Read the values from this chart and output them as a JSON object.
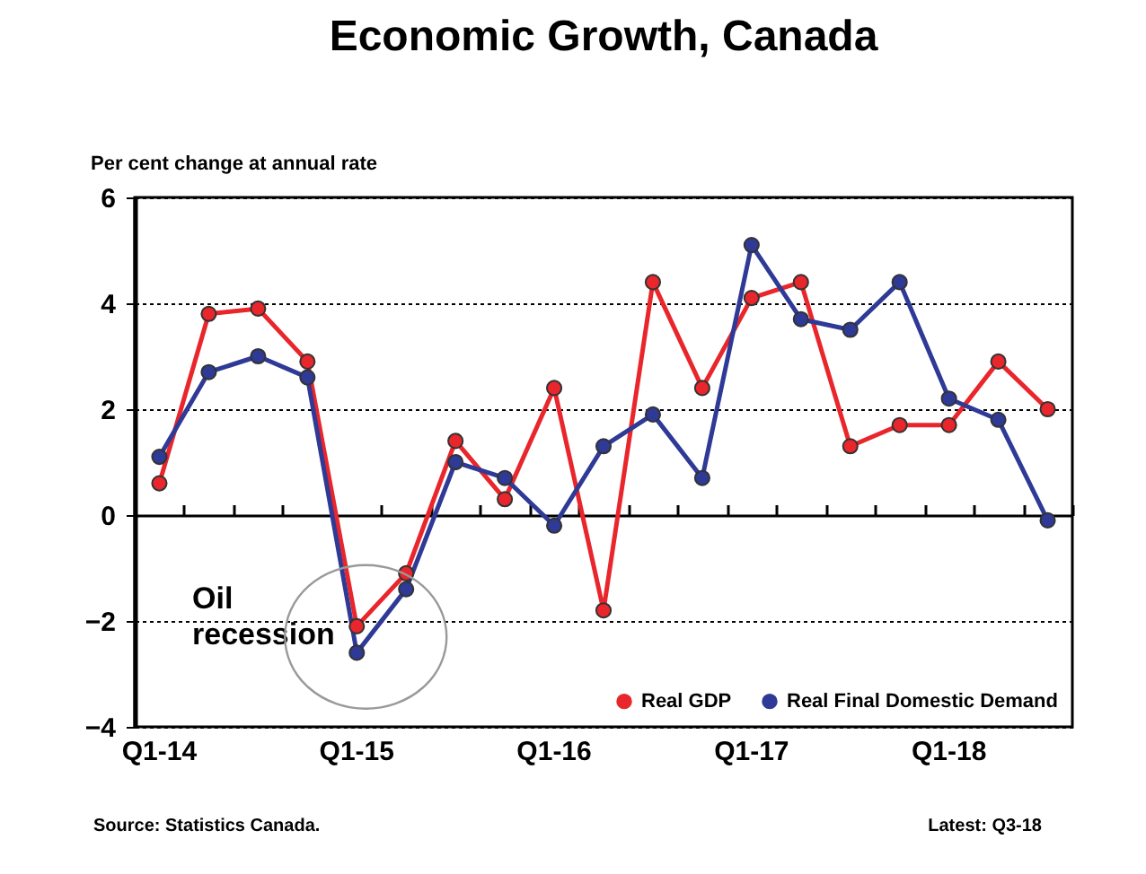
{
  "chart_data": {
    "type": "line",
    "title": "Economic Growth, Canada",
    "ylabel": "Per cent change at annual rate",
    "categories": [
      "Q1-14",
      null,
      null,
      null,
      "Q1-15",
      null,
      null,
      null,
      "Q1-16",
      null,
      null,
      null,
      "Q1-17",
      null,
      null,
      null,
      "Q1-18",
      null,
      null
    ],
    "series": [
      {
        "name": "Real GDP",
        "color": "#e8262b",
        "values": [
          0.6,
          3.8,
          3.9,
          2.9,
          -2.1,
          -1.1,
          1.4,
          0.3,
          2.4,
          -1.8,
          4.4,
          2.4,
          4.1,
          4.4,
          1.3,
          1.7,
          1.7,
          2.9,
          2.0
        ]
      },
      {
        "name": "Real Final Domestic Demand",
        "color": "#2e3a96",
        "values": [
          1.1,
          2.7,
          3.0,
          2.6,
          -2.6,
          -1.4,
          1.0,
          0.7,
          -0.2,
          1.3,
          1.9,
          0.7,
          5.1,
          3.7,
          3.5,
          4.4,
          2.2,
          1.8,
          -0.1
        ]
      }
    ],
    "ylim": [
      -4,
      6
    ],
    "yticks": [
      -4,
      -2,
      0,
      2,
      4,
      6
    ],
    "grid": "y",
    "legend": "bottom right",
    "marker": "circle",
    "line_style": "solid",
    "annotations": [
      "Oil recession",
      "Source: Statistics Canada.",
      "Latest: Q3-18"
    ]
  }
}
